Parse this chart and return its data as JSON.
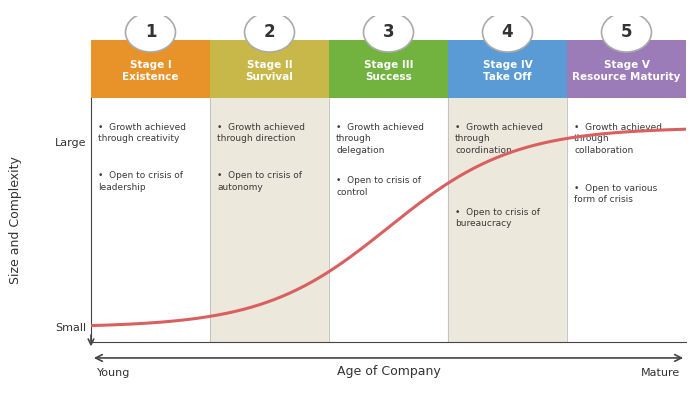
{
  "stages": [
    {
      "num": "1",
      "title": "Stage I\nExistence",
      "color": "#E8922A",
      "bullets": [
        "Growth achieved\nthrough creativity",
        "Open to crisis of\nleadership"
      ]
    },
    {
      "num": "2",
      "title": "Stage II\nSurvival",
      "color": "#C8B84A",
      "bullets": [
        "Growth achieved\nthrough direction",
        "Open to crisis of\nautonomy"
      ]
    },
    {
      "num": "3",
      "title": "Stage III\nSuccess",
      "color": "#72B340",
      "bullets": [
        "Growth achieved\nthrough\ndelegation",
        "Open to crisis of\ncontrol"
      ]
    },
    {
      "num": "4",
      "title": "Stage IV\nTake Off",
      "color": "#5A9BD5",
      "bullets": [
        "Growth achieved\nthrough\ncoordination",
        "Open to crisis of\nbureaucracy"
      ]
    },
    {
      "num": "5",
      "title": "Stage V\nResource Maturity",
      "color": "#9B7BB8",
      "bullets": [
        "Growth achieved\nthrough\ncollaboration",
        "Open to various\nform of crisis"
      ]
    }
  ],
  "ylabel": "Size and Complexity",
  "xlabel": "Age of Company",
  "ytick_labels": [
    "Small",
    "Large"
  ],
  "xtick_labels": [
    "Young",
    "Mature"
  ],
  "bg_color": "#FFFFFF",
  "panel_bg_even": "#EDE8DC",
  "curve_color": "#D96060",
  "curve_linewidth": 2.2,
  "figsize": [
    7.0,
    3.93
  ],
  "dpi": 100
}
